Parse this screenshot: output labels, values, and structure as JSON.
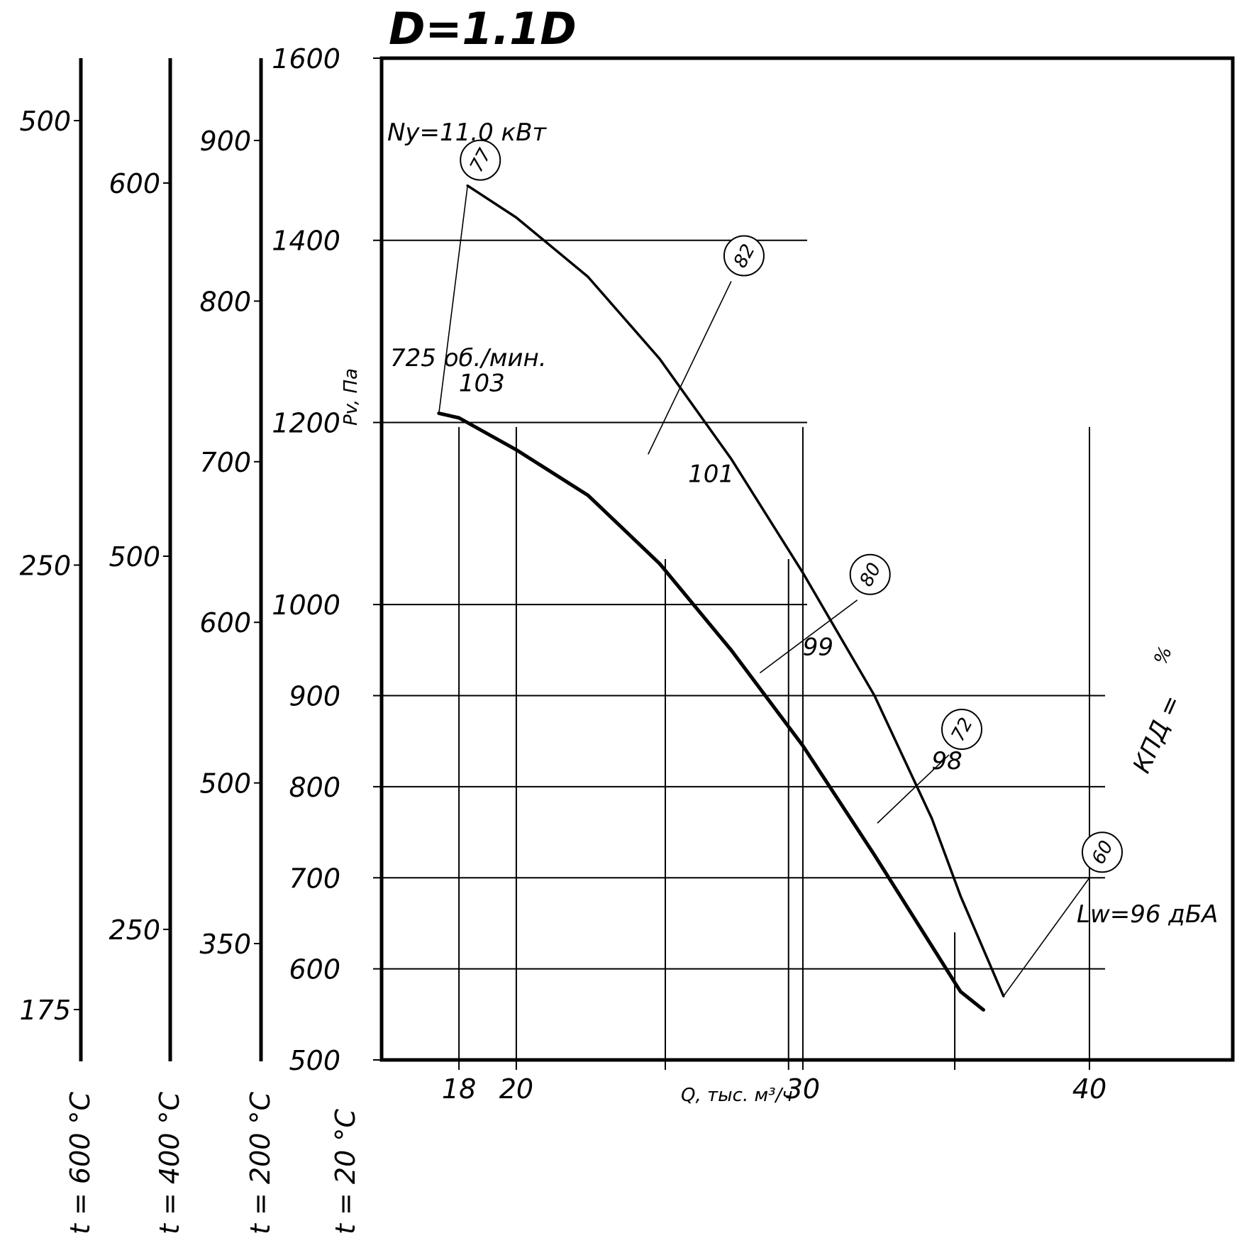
{
  "chart_data": {
    "type": "line",
    "title": "D=1.1D",
    "xlabel": "Q, тыс. м³/ч",
    "ylabel": "Pv, Па",
    "x_ticks": [
      "18",
      "20",
      "30",
      "40"
    ],
    "y_ticks": [
      "1600",
      "1400",
      "1200",
      "1000",
      "900",
      "800",
      "700",
      "600",
      "500"
    ],
    "xlim": [
      15.3,
      45
    ],
    "ylim": [
      500,
      1600
    ],
    "power_label": "Ny=11.0 кВт",
    "speed_label": "725 об./мин.",
    "noise_label": "Lw=96 дБА",
    "efficiency_label": "КПД =",
    "efficiency_value": "60",
    "efficiency_unit": "%",
    "series": [
      {
        "kind": "lower-curve",
        "x": [
          17.3,
          18.0,
          20.0,
          22.5,
          25.0,
          27.5,
          30.0,
          32.5,
          34.5,
          35.5,
          36.3
        ],
        "y": [
          1210,
          1205,
          1170,
          1120,
          1045,
          950,
          845,
          725,
          625,
          575,
          555
        ]
      },
      {
        "kind": "upper-curve",
        "x": [
          18.3,
          20.0,
          22.5,
          25.0,
          27.5,
          30.0,
          32.5,
          34.5,
          35.5,
          37.0
        ],
        "y": [
          1460,
          1425,
          1360,
          1270,
          1160,
          1035,
          900,
          765,
          680,
          570
        ]
      }
    ],
    "efficiency_lines": [
      {
        "label": "77",
        "x": [
          17.3,
          18.3
        ],
        "y": [
          1210,
          1460
        ]
      },
      {
        "label": "82",
        "x": [
          24.6,
          27.5
        ],
        "y": [
          1165,
          1355
        ]
      },
      {
        "label": "80",
        "x": [
          28.5,
          31.9
        ],
        "y": [
          925,
          1005
        ]
      },
      {
        "label": "72",
        "x": [
          32.6,
          35.1
        ],
        "y": [
          760,
          835
        ]
      },
      {
        "label": "60",
        "x": [
          37.0,
          40.0
        ],
        "y": [
          570,
          700
        ]
      }
    ],
    "noise_values": [
      {
        "label": "103",
        "x": 17.5,
        "y": 1225
      },
      {
        "label": "101",
        "x": 25.5,
        "y": 1125
      },
      {
        "label": "99",
        "x": 29.5,
        "y": 935
      },
      {
        "label": "98",
        "x": 34.0,
        "y": 810
      }
    ],
    "extra_x_gridlines": [
      25.2,
      29.5,
      35.3,
      40.0
    ],
    "extra_y_gridlines": [],
    "temperature_scales": [
      {
        "label": "t = 20 °C",
        "values": [
          "1600",
          "1400",
          "1200",
          "1000",
          "900",
          "800",
          "700",
          "600",
          "500"
        ]
      },
      {
        "label": "t = 200 °C",
        "values": [
          "900",
          "800",
          "700",
          "600",
          "500",
          "350"
        ]
      },
      {
        "label": "t = 400 °C",
        "values": [
          "600",
          "500",
          "250"
        ]
      },
      {
        "label": "t = 600 °C",
        "values": [
          "500",
          "250",
          "175"
        ]
      }
    ],
    "grid": true
  }
}
